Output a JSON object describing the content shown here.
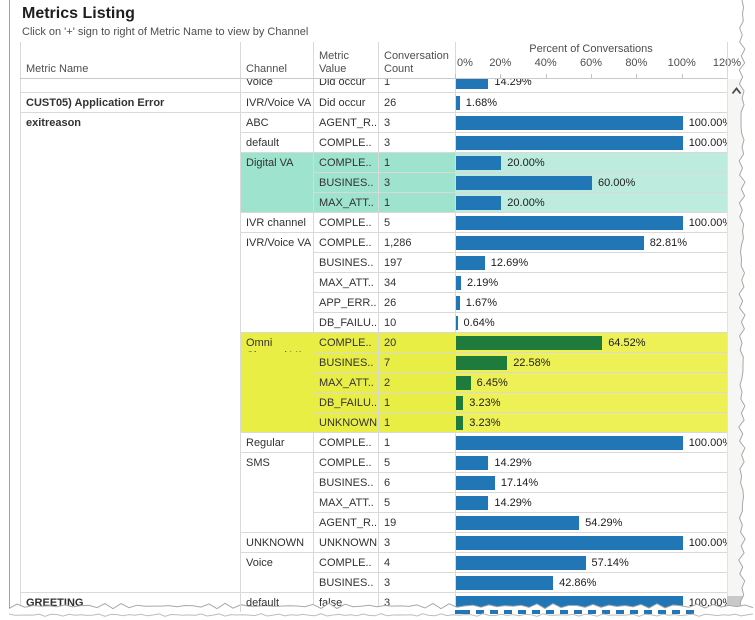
{
  "title": "Metrics Listing",
  "subtitle": "Click on '+' sign to right of Metric Name to view by Channel",
  "columns": {
    "metric": "Metric Name",
    "channel": "Channel",
    "value": "Metric\nValue",
    "count": "Conversation\nCount"
  },
  "axis": {
    "title": "Percent of Conversations",
    "ticks": [
      "0%",
      "20%",
      "40%",
      "60%",
      "80%",
      "100%",
      "120%"
    ],
    "tick_values": [
      0,
      20,
      40,
      60,
      80,
      100,
      120
    ],
    "max": 120
  },
  "colors": {
    "bar_blue": "#2176b5",
    "bar_green": "#1e7b3c",
    "teal_cell": "#9ee3cd",
    "teal_plot": "#bdecde",
    "yellow_cell": "#e9ee45",
    "yellow_plot": "#eef156",
    "grid": "#d9d9d9"
  },
  "rows": [
    {
      "metric": "",
      "channel": "Voice",
      "value": "Did occur",
      "count": "1",
      "pct": 14.29,
      "pct_label": "14.29%",
      "highlight": "",
      "bar": "blue",
      "metric_start": false,
      "channel_start": true,
      "partial": true
    },
    {
      "metric": "CUST05) Application Error",
      "channel": "IVR/Voice VA",
      "value": "Did occur",
      "count": "26",
      "pct": 1.68,
      "pct_label": "1.68%",
      "highlight": "",
      "bar": "blue",
      "metric_start": true,
      "channel_start": true,
      "partial": false
    },
    {
      "metric": "exitreason",
      "channel": "ABC",
      "value": "AGENT_R..",
      "count": "3",
      "pct": 100,
      "pct_label": "100.00%",
      "highlight": "",
      "bar": "blue",
      "metric_start": true,
      "channel_start": true,
      "partial": false
    },
    {
      "metric": "",
      "channel": "default",
      "value": "COMPLE..",
      "count": "3",
      "pct": 100,
      "pct_label": "100.00%",
      "highlight": "",
      "bar": "blue",
      "metric_start": false,
      "channel_start": true,
      "partial": false
    },
    {
      "metric": "",
      "channel": "Digital VA",
      "value": "COMPLE..",
      "count": "1",
      "pct": 20,
      "pct_label": "20.00%",
      "highlight": "teal",
      "bar": "blue",
      "metric_start": false,
      "channel_start": true,
      "partial": false
    },
    {
      "metric": "",
      "channel": "",
      "value": "BUSINES..",
      "count": "3",
      "pct": 60,
      "pct_label": "60.00%",
      "highlight": "teal",
      "bar": "blue",
      "metric_start": false,
      "channel_start": false,
      "partial": false
    },
    {
      "metric": "",
      "channel": "",
      "value": "MAX_ATT..",
      "count": "1",
      "pct": 20,
      "pct_label": "20.00%",
      "highlight": "teal",
      "bar": "blue",
      "metric_start": false,
      "channel_start": false,
      "partial": false
    },
    {
      "metric": "",
      "channel": "IVR channel",
      "value": "COMPLE..",
      "count": "5",
      "pct": 100,
      "pct_label": "100.00%",
      "highlight": "",
      "bar": "blue",
      "metric_start": false,
      "channel_start": true,
      "partial": false
    },
    {
      "metric": "",
      "channel": "IVR/Voice VA",
      "value": "COMPLE..",
      "count": "1,286",
      "pct": 82.81,
      "pct_label": "82.81%",
      "highlight": "",
      "bar": "blue",
      "metric_start": false,
      "channel_start": true,
      "partial": false
    },
    {
      "metric": "",
      "channel": "",
      "value": "BUSINES..",
      "count": "197",
      "pct": 12.69,
      "pct_label": "12.69%",
      "highlight": "",
      "bar": "blue",
      "metric_start": false,
      "channel_start": false,
      "partial": false
    },
    {
      "metric": "",
      "channel": "",
      "value": "MAX_ATT..",
      "count": "34",
      "pct": 2.19,
      "pct_label": "2.19%",
      "highlight": "",
      "bar": "blue",
      "metric_start": false,
      "channel_start": false,
      "partial": false
    },
    {
      "metric": "",
      "channel": "",
      "value": "APP_ERR..",
      "count": "26",
      "pct": 1.67,
      "pct_label": "1.67%",
      "highlight": "",
      "bar": "blue",
      "metric_start": false,
      "channel_start": false,
      "partial": false
    },
    {
      "metric": "",
      "channel": "",
      "value": "DB_FAILU..",
      "count": "10",
      "pct": 0.64,
      "pct_label": "0.64%",
      "highlight": "",
      "bar": "blue",
      "metric_start": false,
      "channel_start": false,
      "partial": false
    },
    {
      "metric": "",
      "channel": "Omni Channel VA",
      "value": "COMPLE..",
      "count": "20",
      "pct": 64.52,
      "pct_label": "64.52%",
      "highlight": "yellow",
      "bar": "green",
      "metric_start": false,
      "channel_start": true,
      "partial": false
    },
    {
      "metric": "",
      "channel": "",
      "value": "BUSINES..",
      "count": "7",
      "pct": 22.58,
      "pct_label": "22.58%",
      "highlight": "yellow",
      "bar": "green",
      "metric_start": false,
      "channel_start": false,
      "partial": false
    },
    {
      "metric": "",
      "channel": "",
      "value": "MAX_ATT..",
      "count": "2",
      "pct": 6.45,
      "pct_label": "6.45%",
      "highlight": "yellow",
      "bar": "green",
      "metric_start": false,
      "channel_start": false,
      "partial": false
    },
    {
      "metric": "",
      "channel": "",
      "value": "DB_FAILU..",
      "count": "1",
      "pct": 3.23,
      "pct_label": "3.23%",
      "highlight": "yellow",
      "bar": "green",
      "metric_start": false,
      "channel_start": false,
      "partial": false
    },
    {
      "metric": "",
      "channel": "",
      "value": "UNKNOWN",
      "count": "1",
      "pct": 3.23,
      "pct_label": "3.23%",
      "highlight": "yellow",
      "bar": "green",
      "metric_start": false,
      "channel_start": false,
      "partial": false
    },
    {
      "metric": "",
      "channel": "Regular",
      "value": "COMPLE..",
      "count": "1",
      "pct": 100,
      "pct_label": "100.00%",
      "highlight": "",
      "bar": "blue",
      "metric_start": false,
      "channel_start": true,
      "partial": false
    },
    {
      "metric": "",
      "channel": "SMS",
      "value": "COMPLE..",
      "count": "5",
      "pct": 14.29,
      "pct_label": "14.29%",
      "highlight": "",
      "bar": "blue",
      "metric_start": false,
      "channel_start": true,
      "partial": false
    },
    {
      "metric": "",
      "channel": "",
      "value": "BUSINES..",
      "count": "6",
      "pct": 17.14,
      "pct_label": "17.14%",
      "highlight": "",
      "bar": "blue",
      "metric_start": false,
      "channel_start": false,
      "partial": false
    },
    {
      "metric": "",
      "channel": "",
      "value": "MAX_ATT..",
      "count": "5",
      "pct": 14.29,
      "pct_label": "14.29%",
      "highlight": "",
      "bar": "blue",
      "metric_start": false,
      "channel_start": false,
      "partial": false
    },
    {
      "metric": "",
      "channel": "",
      "value": "AGENT_R..",
      "count": "19",
      "pct": 54.29,
      "pct_label": "54.29%",
      "highlight": "",
      "bar": "blue",
      "metric_start": false,
      "channel_start": false,
      "partial": false
    },
    {
      "metric": "",
      "channel": "UNKNOWN",
      "value": "UNKNOWN",
      "count": "3",
      "pct": 100,
      "pct_label": "100.00%",
      "highlight": "",
      "bar": "blue",
      "metric_start": false,
      "channel_start": true,
      "partial": false
    },
    {
      "metric": "",
      "channel": "Voice",
      "value": "COMPLE..",
      "count": "4",
      "pct": 57.14,
      "pct_label": "57.14%",
      "highlight": "",
      "bar": "blue",
      "metric_start": false,
      "channel_start": true,
      "partial": false
    },
    {
      "metric": "",
      "channel": "",
      "value": "BUSINES..",
      "count": "3",
      "pct": 42.86,
      "pct_label": "42.86%",
      "highlight": "",
      "bar": "blue",
      "metric_start": false,
      "channel_start": false,
      "partial": false
    },
    {
      "metric": "GREETING",
      "channel": "default",
      "value": "false",
      "count": "3",
      "pct": 100,
      "pct_label": "100.00%",
      "highlight": "",
      "bar": "blue",
      "metric_start": true,
      "channel_start": true,
      "partial": false
    }
  ],
  "scrollbar": {
    "up_arrow": "chevron-up"
  }
}
